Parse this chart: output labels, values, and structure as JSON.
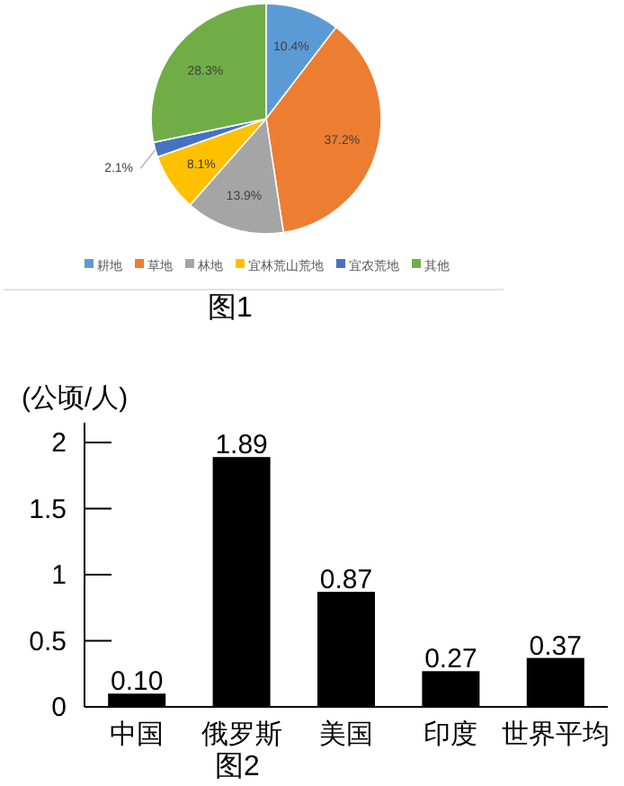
{
  "chart_data": [
    {
      "type": "pie",
      "title": "图1",
      "categories": [
        "耕地",
        "草地",
        "林地",
        "宜林荒山荒地",
        "宜农荒地",
        "其他"
      ],
      "values": [
        10.4,
        37.2,
        13.9,
        8.1,
        2.1,
        28.3
      ],
      "colors": [
        "#5b9bd5",
        "#ed7d31",
        "#a5a5a5",
        "#ffc000",
        "#4472c4",
        "#70ad47"
      ],
      "value_labels": [
        "10.4%",
        "37.2%",
        "13.9%",
        "8.1%",
        "2.1%",
        "28.3%"
      ],
      "legend": "bottom"
    },
    {
      "type": "bar",
      "title": "图2",
      "ylabel": "(公顷/人)",
      "categories": [
        "中国",
        "俄罗斯",
        "美国",
        "印度",
        "世界平均"
      ],
      "values": [
        0.1,
        1.89,
        0.87,
        0.27,
        0.37
      ],
      "color": "#000000",
      "value_labels": [
        "0.10",
        "1.89",
        "0.87",
        "0.27",
        "0.37"
      ],
      "ylim": [
        0,
        2.15
      ],
      "yticks": [
        0,
        0.5,
        1,
        1.5,
        2
      ],
      "grid": false
    }
  ]
}
